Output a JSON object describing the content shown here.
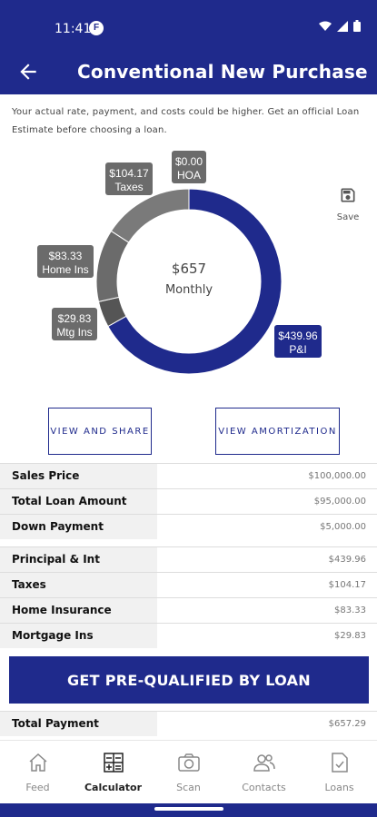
{
  "status_bar": {
    "time": "11:41",
    "app_badge": "F"
  },
  "header": {
    "title": "Conventional New Purchase"
  },
  "disclaimer": "Your actual rate, payment, and costs could be higher. Get an official Loan Estimate before choosing a loan.",
  "save_label": "Save",
  "chart_data": {
    "type": "pie",
    "center_amount": "$657",
    "center_label": "Monthly",
    "slices": [
      {
        "label": "P&I",
        "value": 439.96,
        "display": "$439.96",
        "color": "#1f2a8c"
      },
      {
        "label": "Mtg Ins",
        "value": 29.83,
        "display": "$29.83",
        "color": "#555555"
      },
      {
        "label": "Home Ins",
        "value": 83.33,
        "display": "$83.33",
        "color": "#6b6b6b"
      },
      {
        "label": "Taxes",
        "value": 104.17,
        "display": "$104.17",
        "color": "#7a7a7a"
      },
      {
        "label": "HOA",
        "value": 0.0,
        "display": "$0.00",
        "color": "#888888"
      }
    ]
  },
  "buttons": {
    "view_share": "VIEW AND SHARE",
    "view_amortization": "VIEW AMORTIZATION"
  },
  "table1": [
    {
      "label": "Sales Price",
      "value": "$100,000.00"
    },
    {
      "label": "Total Loan Amount",
      "value": "$95,000.00"
    },
    {
      "label": "Down Payment",
      "value": "$5,000.00"
    }
  ],
  "table2": [
    {
      "label": "Principal & Int",
      "value": "$439.96"
    },
    {
      "label": "Taxes",
      "value": "$104.17"
    },
    {
      "label": "Home Insurance",
      "value": "$83.33"
    },
    {
      "label": "Mortgage Ins",
      "value": "$29.83"
    }
  ],
  "cta_label": "GET PRE-QUALIFIED BY LOAN",
  "total": {
    "label": "Total Payment",
    "value": "$657.29"
  },
  "nav": [
    {
      "label": "Feed",
      "icon": "home-icon"
    },
    {
      "label": "Calculator",
      "icon": "calculator-icon"
    },
    {
      "label": "Scan",
      "icon": "camera-icon"
    },
    {
      "label": "Contacts",
      "icon": "contacts-icon"
    },
    {
      "label": "Loans",
      "icon": "document-icon"
    }
  ],
  "colors": {
    "brand": "#1f2a8c",
    "label_bg": "#6b6b6b"
  }
}
